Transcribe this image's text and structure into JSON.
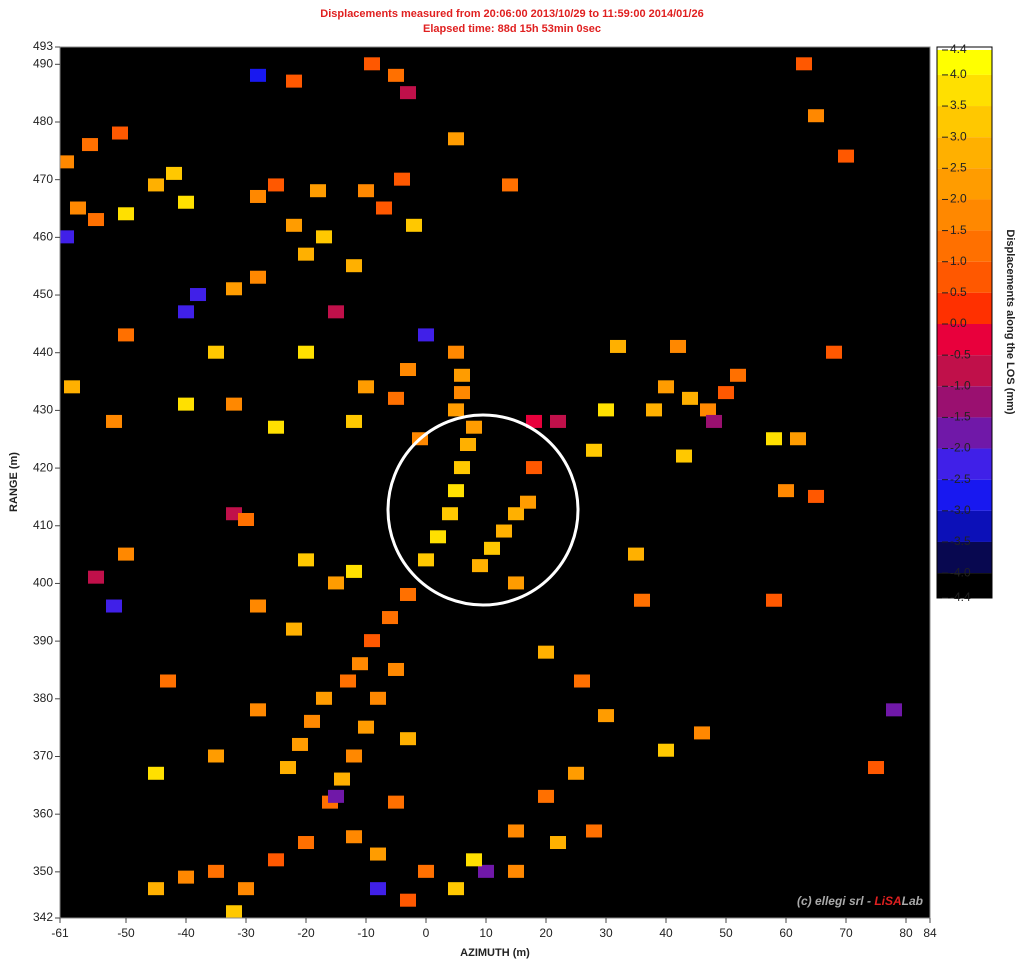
{
  "chart_data": {
    "type": "scatter",
    "title": "Displacements measured from 20:06:00 2013/10/29 to 11:59:00 2014/01/26",
    "subtitle": "Elapsed time: 88d 15h 53min 0sec",
    "x_label": "AZIMUTH (m)",
    "y_label": "RANGE (m)",
    "xlim": [
      -61,
      84
    ],
    "ylim": [
      342,
      493
    ],
    "xticks": [
      -61,
      -50,
      -40,
      -30,
      -20,
      -10,
      0,
      10,
      20,
      30,
      40,
      50,
      60,
      70,
      80,
      84
    ],
    "yticks": [
      342,
      350,
      360,
      370,
      380,
      390,
      400,
      410,
      420,
      430,
      440,
      450,
      460,
      470,
      480,
      490,
      493
    ],
    "background": "#000000",
    "colorbar": {
      "label": "Displacements along the LOS (mm)",
      "lim": [
        -4.4,
        4.4
      ],
      "ticks": [
        4.4,
        {
          "value": 4,
          "label": "4.0"
        },
        3.5,
        {
          "value": 3,
          "label": "3.0"
        },
        2.5,
        {
          "value": 2,
          "label": "2.0"
        },
        1.5,
        {
          "value": 1,
          "label": "1.0"
        },
        0.5,
        {
          "value": 0,
          "label": "0.0"
        },
        -0.5,
        {
          "value": -1,
          "label": "-1.0"
        },
        -1.5,
        {
          "value": -2,
          "label": "-2.0"
        },
        -2.5,
        {
          "value": -3,
          "label": "-3.0"
        },
        -3.5,
        {
          "value": -4,
          "label": "-4.0"
        },
        -4.4
      ],
      "colors": [
        "#ffff00",
        "#ffe000",
        "#ffc800",
        "#ffb000",
        "#ff9c00",
        "#ff8800",
        "#ff7000",
        "#ff5800",
        "#ff3000",
        "#e8003c",
        "#c0104a",
        "#9a1070",
        "#7018a8",
        "#4020e8",
        "#1818f0",
        "#0c10b8",
        "#080850",
        "#000000"
      ]
    },
    "x": [
      0,
      2,
      4,
      5,
      6,
      7,
      8,
      9,
      11,
      13,
      15,
      17,
      -3,
      -6,
      -9,
      -11,
      -13,
      -17,
      -19,
      -21,
      -23,
      -5,
      -8,
      -10,
      -12,
      -14,
      -16,
      5,
      6,
      6,
      5,
      44,
      47,
      50,
      52,
      48,
      40,
      38,
      30,
      28,
      32,
      42,
      60,
      65,
      62,
      68,
      70,
      65,
      63,
      58,
      43,
      58,
      78,
      75,
      35,
      36,
      30,
      40,
      46,
      25,
      20,
      15,
      22,
      28,
      15,
      10,
      8,
      5,
      0,
      -3,
      -8,
      -12,
      -20,
      -25,
      -30,
      -35,
      -40,
      -45,
      -32,
      -8,
      -5,
      -15,
      -45,
      -35,
      -28,
      -43,
      -52,
      -50,
      -55,
      -32,
      -30,
      -20,
      -15,
      -12,
      -28,
      -22,
      -5,
      -10,
      -3,
      -32,
      -40,
      -25,
      -12,
      -50,
      -40,
      -35,
      -20,
      18,
      22,
      18,
      20,
      26,
      -1,
      -59,
      0,
      15,
      -3,
      -58,
      -55,
      -50,
      -56,
      -51,
      -45,
      -42,
      -40,
      -52,
      -60,
      -28,
      -25,
      -22,
      -20,
      -17,
      -18,
      -10,
      -7,
      -4,
      -2,
      -12,
      -15,
      -28,
      -32,
      -38,
      -9,
      -5,
      -3,
      -28,
      -22,
      5,
      14,
      -60
    ],
    "y": [
      404,
      408,
      412,
      416,
      420,
      424,
      427,
      403,
      406,
      409,
      412,
      414,
      398,
      394,
      390,
      386,
      383,
      380,
      376,
      372,
      368,
      385,
      380,
      375,
      370,
      366,
      362,
      440,
      436,
      433,
      430,
      432,
      430,
      433,
      436,
      428,
      434,
      430,
      430,
      423,
      441,
      441,
      416,
      415,
      425,
      440,
      474,
      481,
      490,
      425,
      422,
      397,
      378,
      368,
      405,
      397,
      377,
      371,
      374,
      367,
      363,
      357,
      355,
      357,
      350,
      350,
      352,
      347,
      350,
      345,
      353,
      356,
      355,
      352,
      347,
      350,
      349,
      347,
      343,
      347,
      362,
      363,
      367,
      370,
      378,
      383,
      396,
      405,
      401,
      412,
      411,
      404,
      400,
      402,
      396,
      392,
      432,
      434,
      437,
      431,
      431,
      427,
      428,
      443,
      447,
      440,
      440,
      428,
      428,
      420,
      388,
      383,
      425,
      434,
      443,
      400,
      373,
      465,
      463,
      464,
      476,
      478,
      469,
      471,
      466,
      428,
      460,
      467,
      469,
      462,
      457,
      460,
      468,
      468,
      465,
      470,
      462,
      455,
      447,
      453,
      451,
      450,
      490,
      488,
      485,
      488,
      487,
      477,
      469,
      473
    ],
    "values": [
      3,
      3.5,
      3,
      3.5,
      3,
      2.5,
      2,
      2.5,
      3,
      2.5,
      2.5,
      2,
      1,
      1,
      0.5,
      1.5,
      1,
      2,
      1.5,
      2,
      2.5,
      1.5,
      1.5,
      2,
      1.5,
      2.5,
      1,
      1.5,
      2,
      1.5,
      2,
      2.5,
      1.5,
      0.5,
      1,
      -1.5,
      2,
      2.5,
      3.5,
      3,
      2.5,
      1.5,
      1.5,
      0.5,
      2,
      0.5,
      0.5,
      1.5,
      0.5,
      3.5,
      3,
      0.5,
      -2,
      0.5,
      2.5,
      1,
      2,
      3,
      1.5,
      2,
      1,
      1.5,
      2.5,
      1,
      1.5,
      -2,
      3.5,
      3,
      1,
      0.5,
      2,
      1.5,
      1,
      0.5,
      1.5,
      1,
      1.5,
      2.5,
      3,
      -2.5,
      1,
      -2,
      3.5,
      2,
      1.5,
      1,
      -2.5,
      1.5,
      -1,
      -1,
      1,
      3,
      2,
      3.5,
      1.5,
      2.5,
      1,
      2,
      1.5,
      1.5,
      3.5,
      3.5,
      3,
      1,
      -2.5,
      3,
      3.5,
      -0.5,
      -1,
      0.5,
      2.5,
      1,
      1.5,
      2.5,
      -2.5,
      2,
      2.5,
      1.5,
      1,
      3.5,
      1,
      0.5,
      2.5,
      3,
      3.5,
      1.5,
      -2.5,
      1.5,
      0.5,
      2,
      2.5,
      3,
      2,
      1.5,
      0.5,
      0.5,
      3,
      2.5,
      -1,
      1.5,
      2,
      -2.5,
      0.5,
      1,
      -1,
      -3,
      0.5,
      2,
      1,
      1.5
    ],
    "watermark": [
      "(c) ellegi srl - ",
      "LiSA",
      "Lab"
    ]
  }
}
